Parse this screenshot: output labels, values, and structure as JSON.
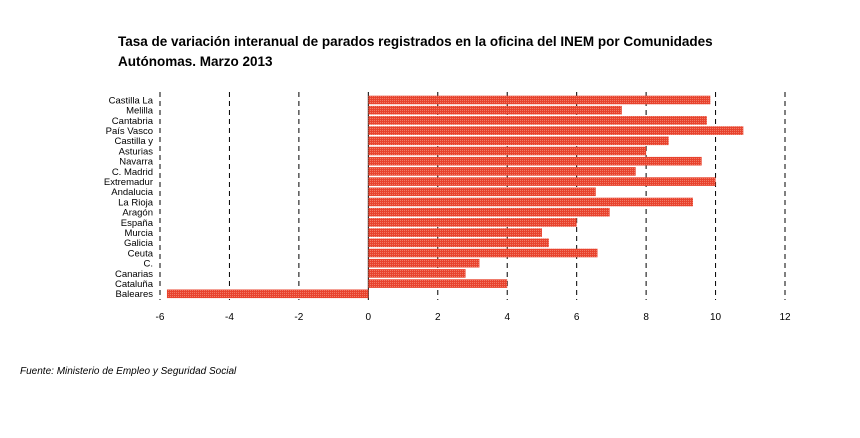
{
  "chart_data": {
    "type": "bar",
    "orientation": "horizontal",
    "title": [
      "Tasa de variación interanual de parados registrados en la oficina del INEM por Comunidades",
      "Autónomas.  Marzo 2013"
    ],
    "categories": [
      "Castilla La",
      "Melilla",
      "Cantabria",
      "País Vasco",
      "Castilla y",
      "Asturias",
      "Navarra",
      "C. Madrid",
      "Extremadur",
      "Andalucia",
      "La Rioja",
      "Aragón",
      "España",
      "Murcia",
      "Galicia",
      "Ceuta",
      "C.",
      "Canarias",
      "Cataluña",
      "Baleares"
    ],
    "values": [
      9.85,
      7.3,
      9.75,
      10.8,
      8.65,
      8.0,
      9.6,
      7.7,
      10.0,
      6.55,
      9.35,
      6.95,
      6.0,
      5.0,
      5.2,
      6.6,
      3.2,
      2.8,
      4.0,
      -5.8
    ],
    "xlim": [
      -6,
      12
    ],
    "xticks": [
      -6,
      -4,
      -2,
      0,
      2,
      4,
      6,
      8,
      10,
      12
    ],
    "xtick_labels": [
      "-6",
      "-4",
      "-2",
      "0",
      "2",
      "4",
      "6",
      "8",
      "10",
      "12"
    ],
    "grid": "vertical dashed",
    "bar_color": "#e8432e"
  },
  "source": "Fuente: Ministerio de Empleo y Seguridad Social"
}
